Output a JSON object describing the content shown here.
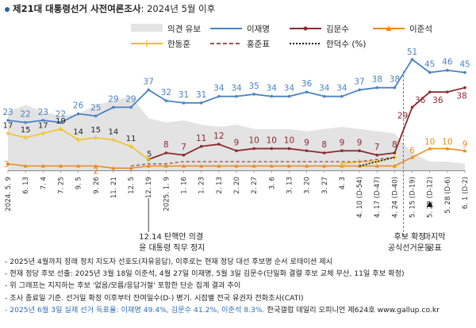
{
  "title": {
    "main": "제21대 대통령선거 사전여론조사",
    "sub": ": 2024년 5월 이후"
  },
  "colors": {
    "lee": "#4a82c4",
    "kim": "#8b2b30",
    "leejs": "#e98a1d",
    "han": "#f0c21a",
    "hong": "#a0524e",
    "handh": "#111111",
    "opinion": "#e3e3e3",
    "blue": "#2e6dbd"
  },
  "chart_data": {
    "type": "line",
    "title": "제21대 대통령선거 사전여론조사: 2024년 5월 이후",
    "ylabel": "%",
    "ylim": [
      0,
      55
    ],
    "categories": [
      "2024. 5. 9",
      "6. 13",
      "7. 4",
      "7. 25",
      "9. 5",
      "9. 26",
      "11. 21",
      "12. 5",
      "12. 19",
      "2025. 1. 9",
      "1. 16",
      "1. 23",
      "2. 13",
      "2. 20",
      "2. 27",
      "3. 6",
      "3. 13",
      "3. 20",
      "3. 27",
      "4. 3",
      "4. 10 (D-54)",
      "4. 17 (D-47)",
      "4. 24 (D-40)",
      "5. 15 (D-19)",
      "5. 22 (D-12)",
      "5. 28 (D-6)",
      "6. 1 (D-2)"
    ],
    "series": [
      {
        "key": "lee",
        "name": "이재명",
        "values": [
          23,
          22,
          23,
          22,
          26,
          25,
          29,
          29,
          37,
          32,
          31,
          31,
          34,
          34,
          35,
          34,
          34,
          36,
          34,
          34,
          37,
          38,
          38,
          51,
          45,
          46,
          45
        ]
      },
      {
        "key": "kim",
        "name": "김문수",
        "values": [
          null,
          null,
          null,
          null,
          null,
          null,
          null,
          null,
          5,
          8,
          7,
          11,
          12,
          9,
          10,
          10,
          10,
          9,
          8,
          9,
          9,
          7,
          8,
          29,
          36,
          36,
          38
        ]
      },
      {
        "key": "leejs",
        "name": "이준석",
        "values": [
          3,
          2,
          2,
          2,
          2,
          2,
          1,
          1,
          2,
          2,
          2,
          2,
          2,
          2,
          2,
          2,
          2,
          2,
          2,
          2,
          2,
          2,
          2,
          6,
          10,
          10,
          9
        ]
      },
      {
        "key": "han",
        "name": "한동훈",
        "values": [
          17,
          15,
          17,
          19,
          14,
          15,
          14,
          11,
          5,
          null,
          null,
          null,
          null,
          null,
          null,
          null,
          null,
          null,
          null,
          3,
          4,
          4,
          6,
          null,
          null,
          null,
          null
        ]
      },
      {
        "key": "hong",
        "name": "홍준표",
        "values": [
          null,
          null,
          null,
          null,
          null,
          null,
          null,
          2,
          3,
          3,
          4,
          4,
          4,
          4,
          4,
          4,
          4,
          4,
          4,
          4,
          4,
          5,
          6,
          null,
          null,
          null,
          null
        ]
      },
      {
        "key": "handh",
        "name": "한덕수 (%)",
        "values": [
          null,
          null,
          null,
          null,
          null,
          null,
          null,
          null,
          null,
          null,
          null,
          null,
          null,
          null,
          null,
          null,
          null,
          null,
          null,
          null,
          2,
          4,
          6,
          null,
          null,
          null,
          null
        ]
      }
    ],
    "opinion_area": {
      "name": "의견 유보",
      "values": [
        27,
        30,
        27,
        25,
        26,
        30,
        32,
        34,
        24,
        22,
        23,
        21,
        20,
        21,
        19,
        19,
        19,
        18,
        19,
        20,
        19,
        18,
        17,
        8,
        4,
        4,
        3
      ]
    },
    "value_labels": {
      "lee": [
        "23",
        "22",
        "23",
        "22",
        "26",
        "25",
        "29",
        "29",
        "37",
        "32",
        "31",
        "31",
        "34",
        "34",
        "35",
        "34",
        "34",
        "36",
        "34",
        "34",
        "37",
        "38",
        "38",
        "51",
        "45",
        "46",
        "45"
      ],
      "kim": [
        "",
        "",
        "",
        "",
        "",
        "",
        "",
        "",
        "",
        "8",
        "7",
        "11",
        "12",
        "9",
        "10",
        "10",
        "10",
        "9",
        "8",
        "9",
        "9",
        "7",
        "8",
        "29",
        "36",
        "36",
        "38"
      ],
      "leejs": [
        "3",
        "",
        "",
        "",
        "",
        "2",
        "",
        "",
        "",
        "",
        "",
        "",
        "",
        "",
        "",
        "",
        "",
        "",
        "",
        "",
        "",
        "",
        "",
        "6",
        "10",
        "10",
        "9"
      ],
      "han": [
        "17",
        "15",
        "17",
        "19",
        "14",
        "15",
        "14",
        "11",
        "5",
        "",
        "",
        "",
        "",
        "",
        "",
        "",
        "",
        "",
        "",
        "",
        "",
        "",
        "",
        "",
        "",
        "",
        ""
      ]
    },
    "annotations": [
      {
        "at": "12. 19",
        "text": "12.14 탄핵안 의결"
      },
      {
        "at": "12. 19",
        "text": "윤 대통령 직무 정지"
      },
      {
        "at": "5. 15 (D-19)",
        "text": "후보 확정"
      },
      {
        "at": "5. 15 (D-19)",
        "text": "공식선거운동"
      },
      {
        "at": "5. 22 (D-12)",
        "text": "마지막"
      },
      {
        "at": "5. 22 (D-12)",
        "text": "공표"
      }
    ],
    "legend": [
      "의견 유보",
      "이재명",
      "김문수",
      "이준석",
      "한동훈",
      "홍준표",
      "한덕수 (%)"
    ]
  },
  "notes": [
    "- 2025년 4월까지 장래 정치 지도자 선호도(자유응답), 이후로는 현재 정당 대선 후보명 순서 로테이션 제시",
    "- 현재 정당 후보 선출: 2025년 3월 18일 이준석, 4월 27일 이재명, 5월 3일 김문수(단일화 결렬 후보 교체 무산, 11일 후보 확정)",
    "- 위 그래프는 지지하는 후보 '없음/모름/응답거절' 포함한 단순 집계 결과 추이",
    "- 조사 종료일 기준. 선거일 확정 이후부터 잔여일수(D-) 병기. 시점별 전국 유권자 전화조사(CATI)"
  ],
  "footer": {
    "result": "- 2025년 6월 3일 실제 선거 득표율: 이재명 49.4%, 김문수 41.2%, 이준석 8.3%.",
    "source": "한국갤럽 데일리 오피니언 제624호 www.gallup.co.kr"
  }
}
